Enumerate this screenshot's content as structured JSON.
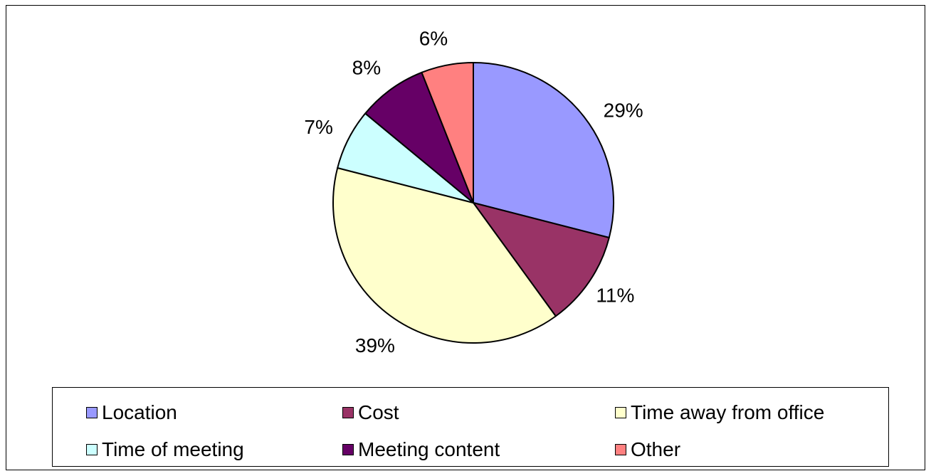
{
  "chart_data": {
    "type": "pie",
    "title": "",
    "slices": [
      {
        "label": "Location",
        "value": 29,
        "display": "29%",
        "color": "#9999FF"
      },
      {
        "label": "Cost",
        "value": 11,
        "display": "11%",
        "color": "#993366"
      },
      {
        "label": "Time away from office",
        "value": 39,
        "display": "39%",
        "color": "#FFFFCC"
      },
      {
        "label": "Time of meeting",
        "value": 7,
        "display": "7%",
        "color": "#CCFFFF"
      },
      {
        "label": "Meeting content",
        "value": 8,
        "display": "8%",
        "color": "#660066"
      },
      {
        "label": "Other",
        "value": 6,
        "display": "6%",
        "color": "#FF8080"
      }
    ],
    "start_angle_deg": 0,
    "direction": "clockwise",
    "legend_position": "bottom"
  }
}
